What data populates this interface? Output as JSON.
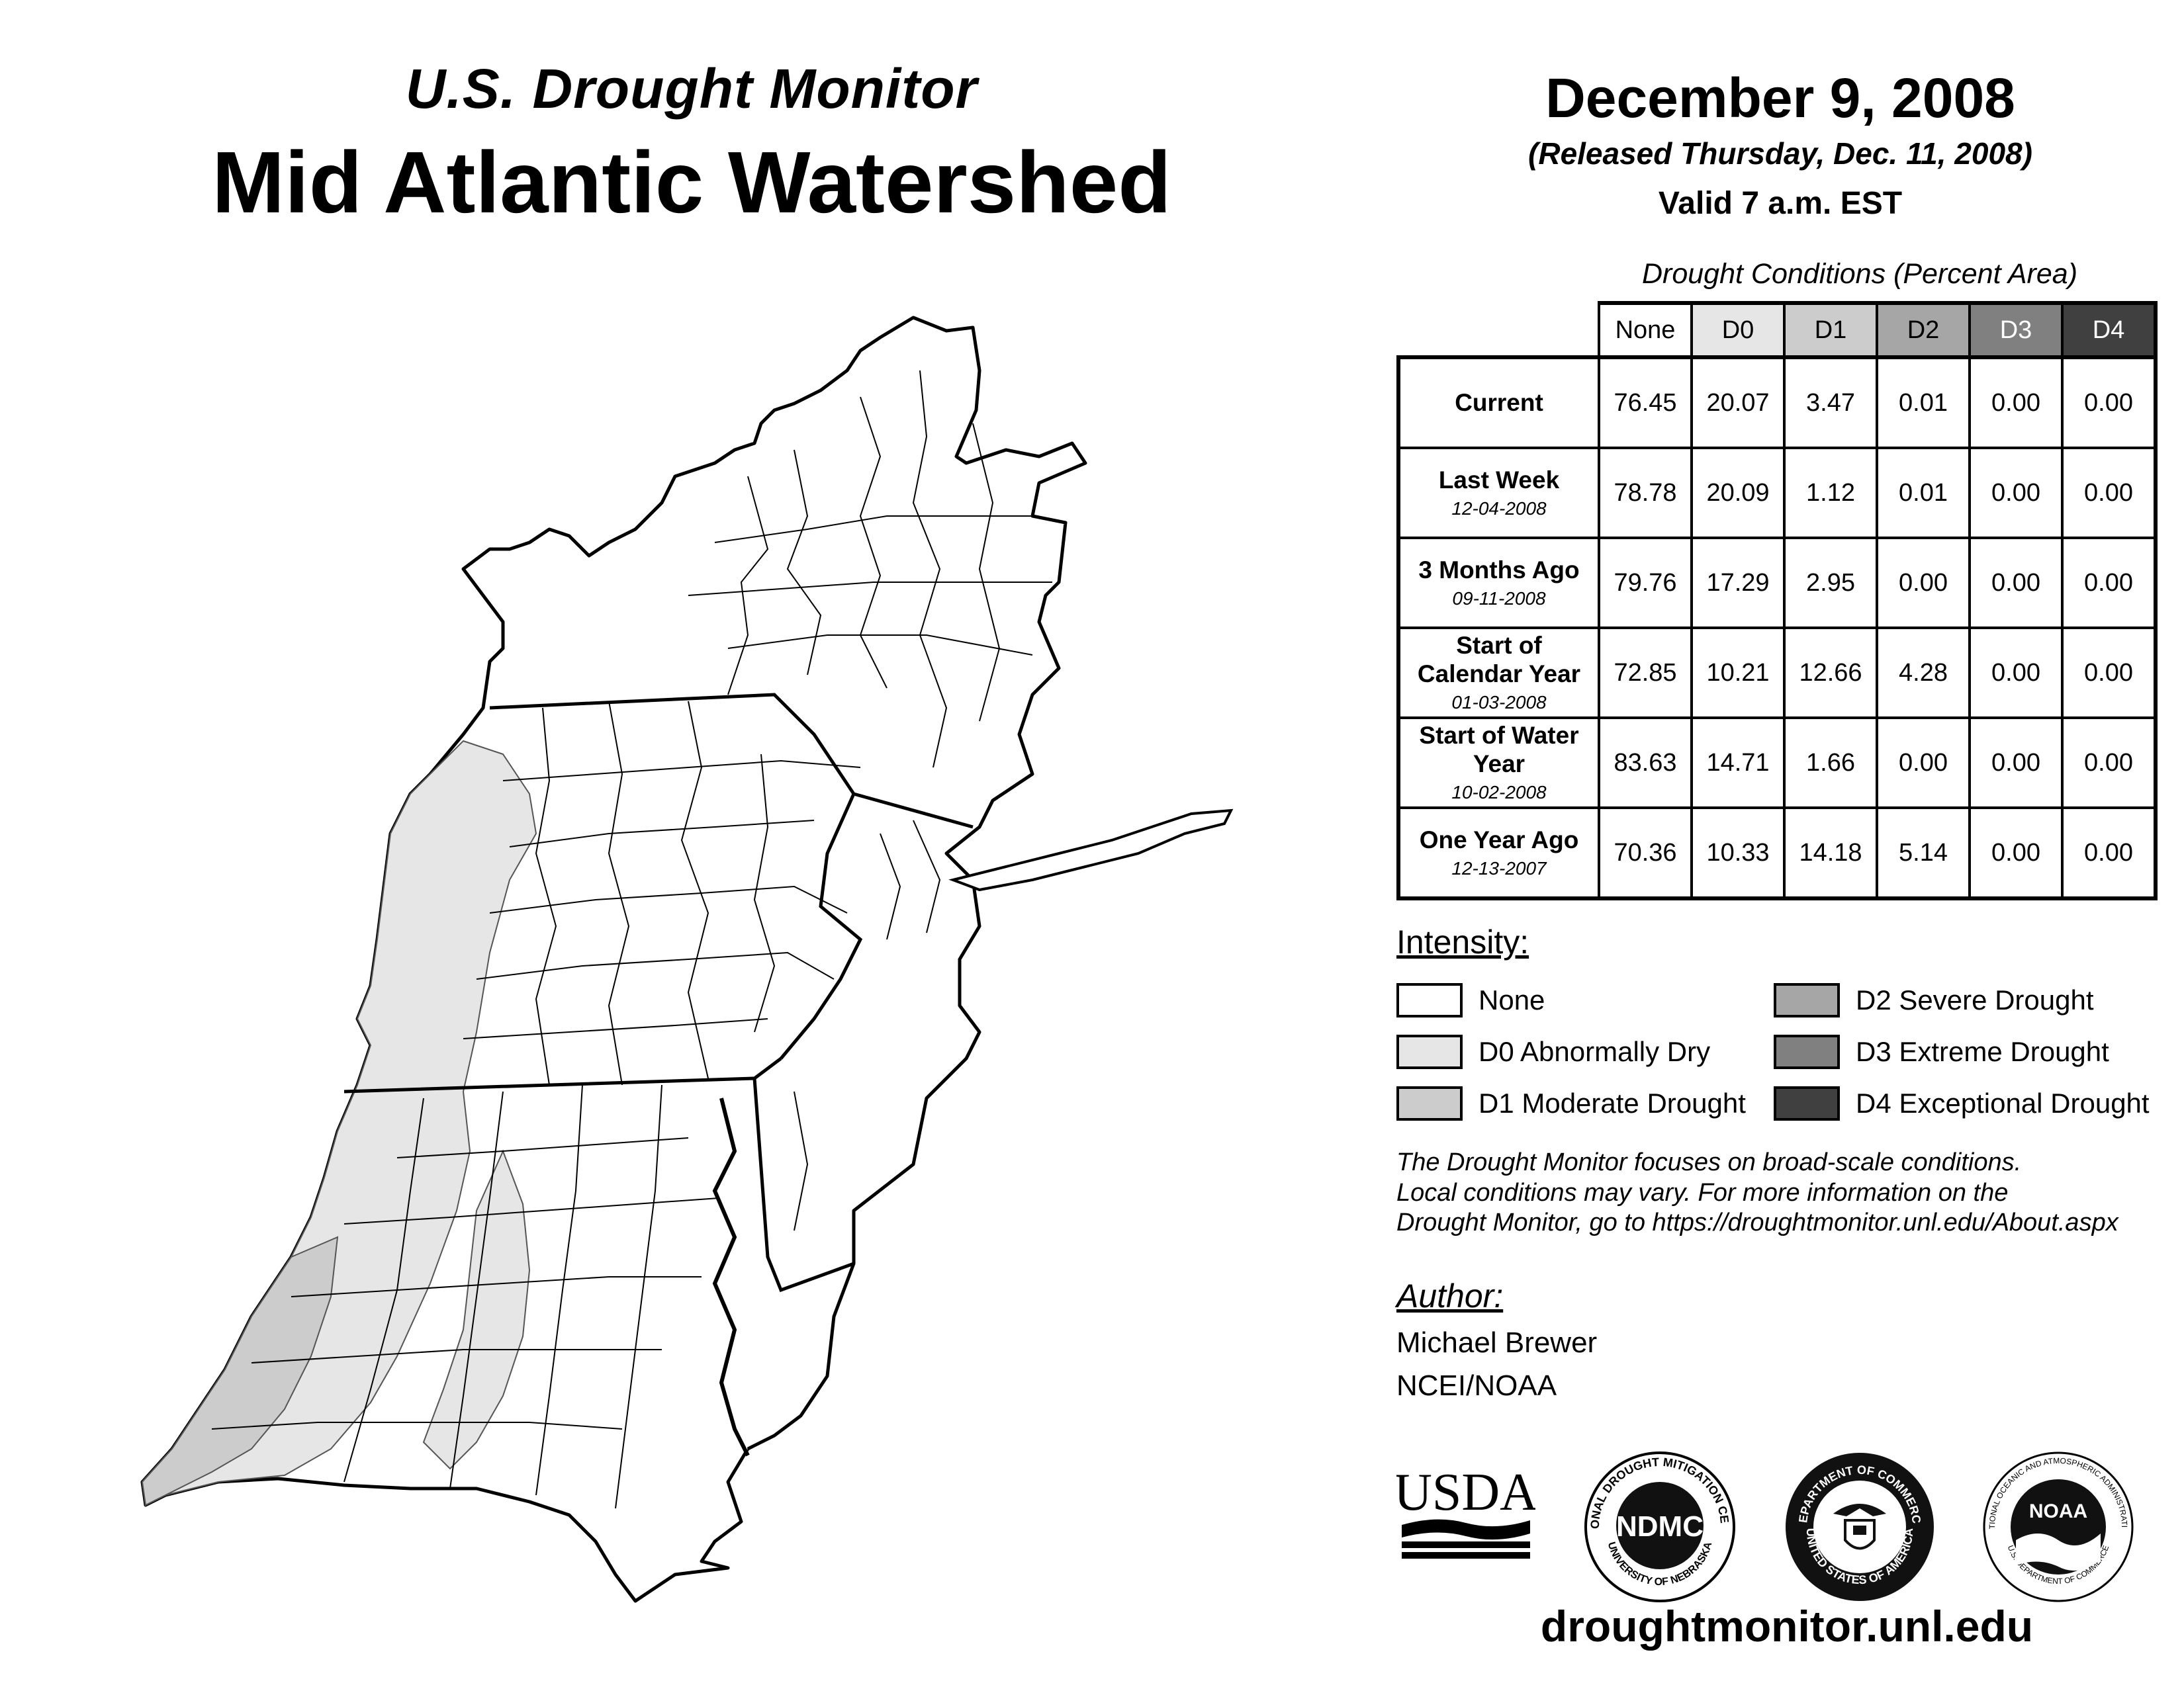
{
  "header": {
    "subtitle": "U.S. Drought Monitor",
    "title": "Mid Atlantic Watershed",
    "date": "December 9, 2008",
    "released": "(Released Thursday, Dec. 11, 2008)",
    "valid": "Valid 7 a.m. EST"
  },
  "table": {
    "caption": "Drought Conditions (Percent Area)",
    "columns": [
      "None",
      "D0",
      "D1",
      "D2",
      "D3",
      "D4"
    ],
    "column_colors": [
      "#ffffff",
      "#e6e6e6",
      "#cccccc",
      "#a6a6a6",
      "#808080",
      "#404040"
    ],
    "rows": [
      {
        "label": "Current",
        "date": "",
        "values": [
          "76.45",
          "20.07",
          "3.47",
          "0.01",
          "0.00",
          "0.00"
        ]
      },
      {
        "label": "Last Week",
        "date": "12-04-2008",
        "values": [
          "78.78",
          "20.09",
          "1.12",
          "0.01",
          "0.00",
          "0.00"
        ]
      },
      {
        "label": "3 Months Ago",
        "date": "09-11-2008",
        "values": [
          "79.76",
          "17.29",
          "2.95",
          "0.00",
          "0.00",
          "0.00"
        ]
      },
      {
        "label": "Start of Calendar Year",
        "date": "01-03-2008",
        "values": [
          "72.85",
          "10.21",
          "12.66",
          "4.28",
          "0.00",
          "0.00"
        ]
      },
      {
        "label": "Start of Water Year",
        "date": "10-02-2008",
        "values": [
          "83.63",
          "14.71",
          "1.66",
          "0.00",
          "0.00",
          "0.00"
        ]
      },
      {
        "label": "One Year Ago",
        "date": "12-13-2007",
        "values": [
          "70.36",
          "10.33",
          "14.18",
          "5.14",
          "0.00",
          "0.00"
        ]
      }
    ]
  },
  "legend": {
    "title": "Intensity:",
    "items": [
      {
        "label": "None",
        "color": "#ffffff"
      },
      {
        "label": "D0 Abnormally Dry",
        "color": "#e6e6e6"
      },
      {
        "label": "D1 Moderate Drought",
        "color": "#cccccc"
      },
      {
        "label": "D2 Severe Drought",
        "color": "#a6a6a6"
      },
      {
        "label": "D3 Extreme Drought",
        "color": "#808080"
      },
      {
        "label": "D4 Exceptional Drought",
        "color": "#404040"
      }
    ]
  },
  "note": {
    "line1": "The Drought Monitor focuses on broad-scale conditions.",
    "line2": "Local conditions may vary. For more information on the",
    "line3": "Drought Monitor, go to https://droughtmonitor.unl.edu/About.aspx"
  },
  "author": {
    "title": "Author:",
    "name": "Michael Brewer",
    "org": "NCEI/NOAA"
  },
  "logos": {
    "usda": "USDA",
    "ndmc": "NDMC",
    "ndmc_ring_top": "NATIONAL DROUGHT MITIGATION CENTER",
    "ndmc_ring_bottom": "UNIVERSITY OF NEBRASKA",
    "commerce_ring_top": "DEPARTMENT OF COMMERCE",
    "commerce_ring_bottom": "UNITED STATES OF AMERICA",
    "noaa": "NOAA",
    "noaa_ring_top": "NATIONAL OCEANIC AND ATMOSPHERIC ADMINISTRATION",
    "noaa_ring_bottom": "U.S. DEPARTMENT OF COMMERCE"
  },
  "website": "droughtmonitor.unl.edu"
}
